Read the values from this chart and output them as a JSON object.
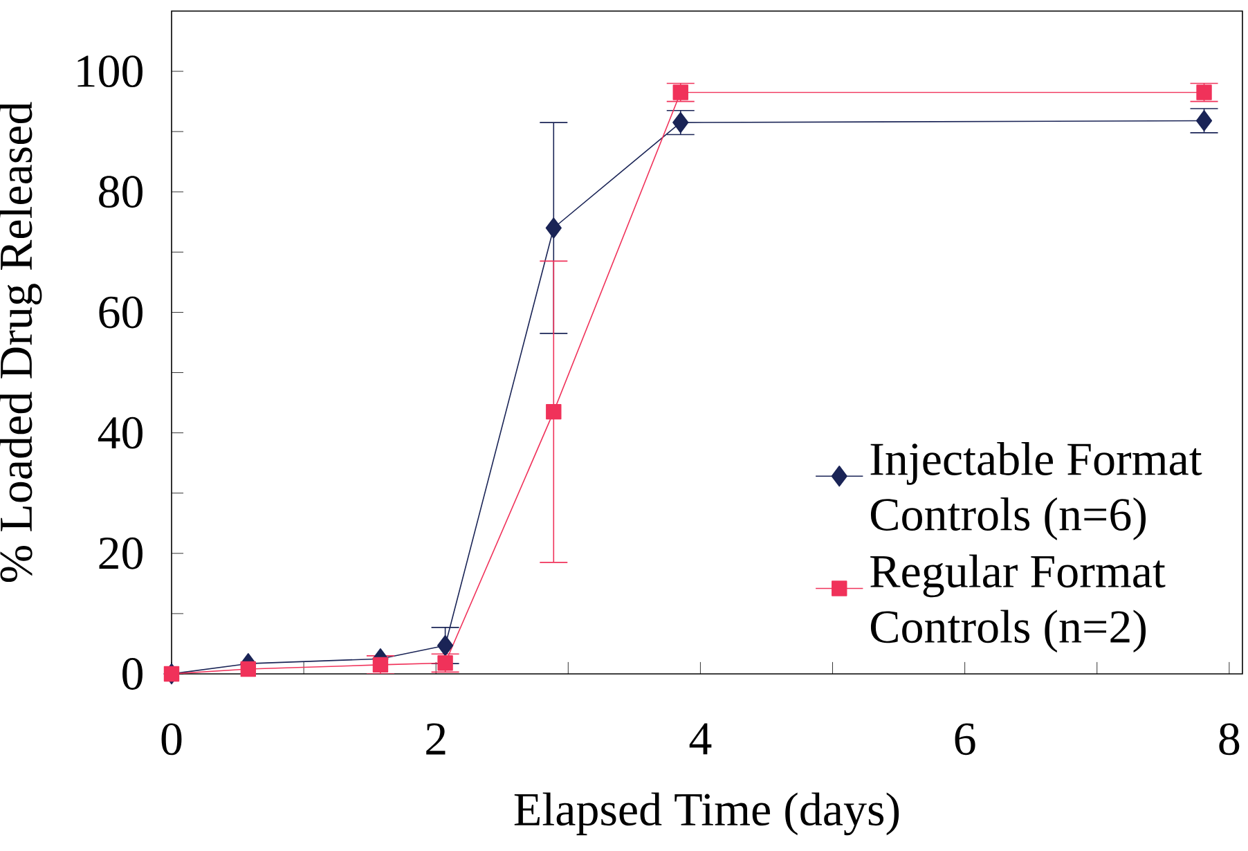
{
  "chart_data": {
    "type": "line",
    "xlabel": "Elapsed Time (days)",
    "ylabel": "% Loaded Drug Released",
    "xlim": [
      0,
      8.1
    ],
    "ylim": [
      0,
      110
    ],
    "xticks": [
      0,
      {
        "value": 1,
        "label": null
      },
      2,
      {
        "value": 3,
        "label": null
      },
      4,
      {
        "value": 5,
        "label": null
      },
      6,
      {
        "value": 7,
        "label": null
      },
      8
    ],
    "yticks": [
      0,
      {
        "value": 10,
        "label": null
      },
      20,
      {
        "value": 30,
        "label": null
      },
      40,
      {
        "value": 50,
        "label": null
      },
      60,
      {
        "value": 70,
        "label": null
      },
      80,
      {
        "value": 90,
        "label": null
      },
      100
    ],
    "grid": false,
    "legend": "right",
    "series": [
      {
        "name": "Injectable Format Controls (n=6)",
        "color": "#1a2456",
        "marker": "diamond",
        "x": [
          0,
          0.58,
          1.58,
          2.07,
          2.89,
          3.85,
          7.81
        ],
        "values": [
          0,
          1.7,
          2.5,
          4.7,
          74,
          91.5,
          91.8
        ],
        "errors": [
          null,
          null,
          null,
          3,
          17.5,
          2,
          2
        ]
      },
      {
        "name": "Regular Format Controls (n=2)",
        "color": "#f0325a",
        "marker": "square",
        "x": [
          0,
          0.58,
          1.58,
          2.07,
          2.89,
          3.85,
          7.81
        ],
        "values": [
          0,
          0.8,
          1.5,
          1.8,
          43.5,
          96.5,
          96.5
        ],
        "errors": [
          null,
          null,
          1.5,
          1.5,
          25,
          1.5,
          1.5
        ]
      }
    ]
  }
}
